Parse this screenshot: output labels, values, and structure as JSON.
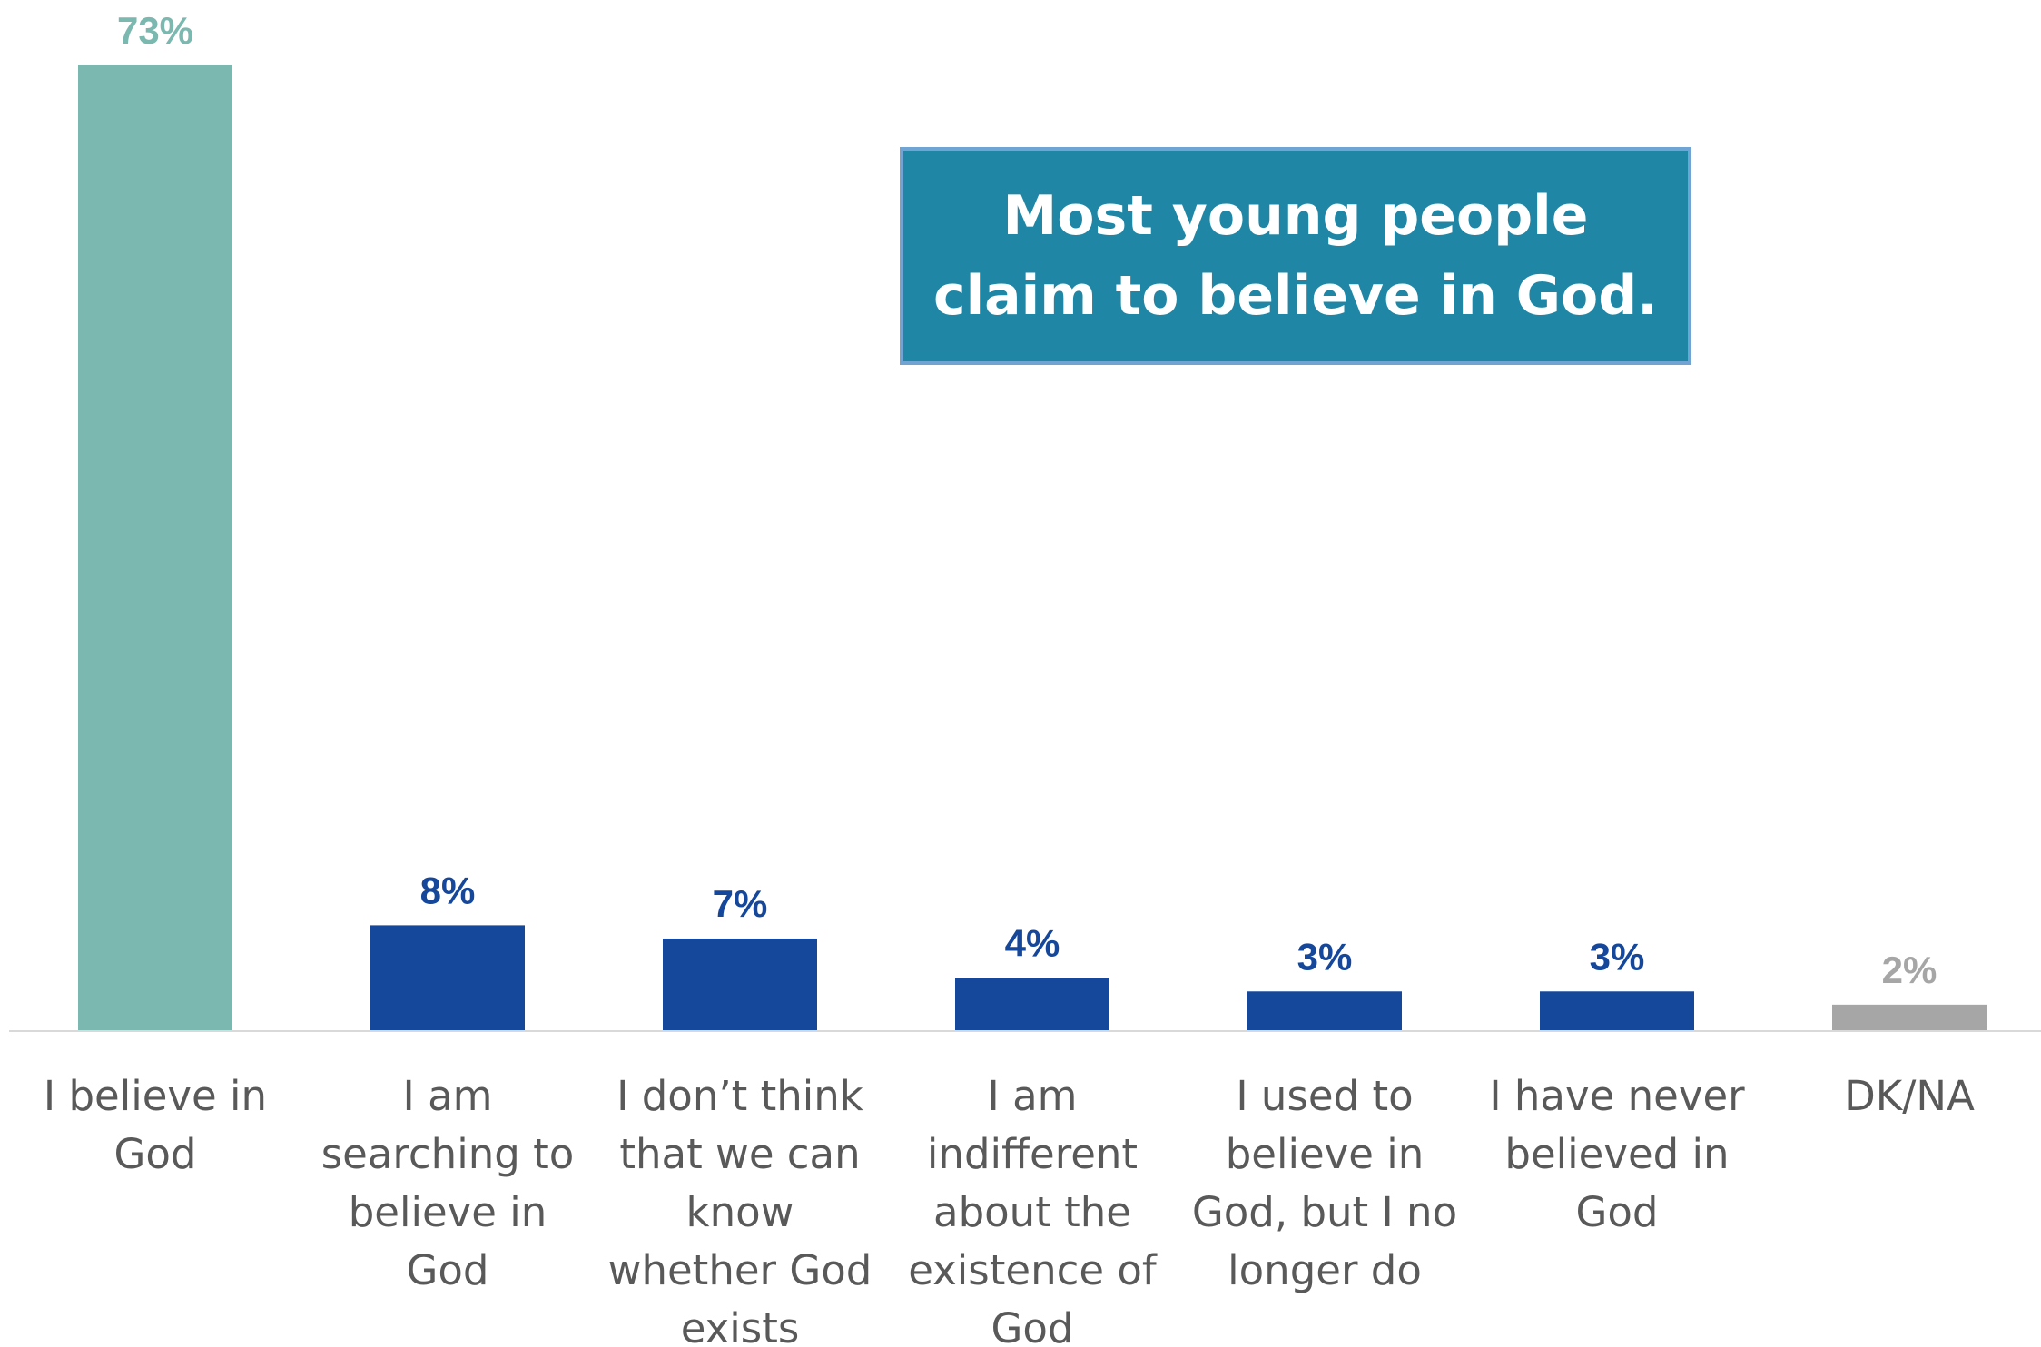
{
  "chart_data": {
    "type": "bar",
    "categories": [
      [
        "I believe in",
        "God"
      ],
      [
        "I am",
        "searching to",
        "believe in",
        "God"
      ],
      [
        "I don’t think",
        "that we can",
        "know",
        "whether God",
        "exists"
      ],
      [
        "I am",
        "indifferent",
        "about the",
        "existence of",
        "God"
      ],
      [
        "I used to",
        "believe in",
        "God, but I no",
        "longer do"
      ],
      [
        "I have never",
        "believed in",
        "God"
      ],
      [
        "DK/NA"
      ]
    ],
    "values": [
      73,
      8,
      7,
      4,
      3,
      3,
      2
    ],
    "data_labels": [
      "73%",
      "8%",
      "7%",
      "4%",
      "3%",
      "3%",
      "2%"
    ],
    "colors": [
      "#7BB8AF",
      "#15479B",
      "#15479B",
      "#15479B",
      "#15479B",
      "#15479B",
      "#A6A6A6"
    ],
    "label_colors": [
      "#7BB8AF",
      "#15479B",
      "#15479B",
      "#15479B",
      "#15479B",
      "#15479B",
      "#A6A6A6"
    ],
    "ylim": [
      0,
      73
    ],
    "grid": false,
    "axis_color": "#D9D9D9"
  },
  "callout": {
    "text": "Most young people claim to believe in God."
  }
}
